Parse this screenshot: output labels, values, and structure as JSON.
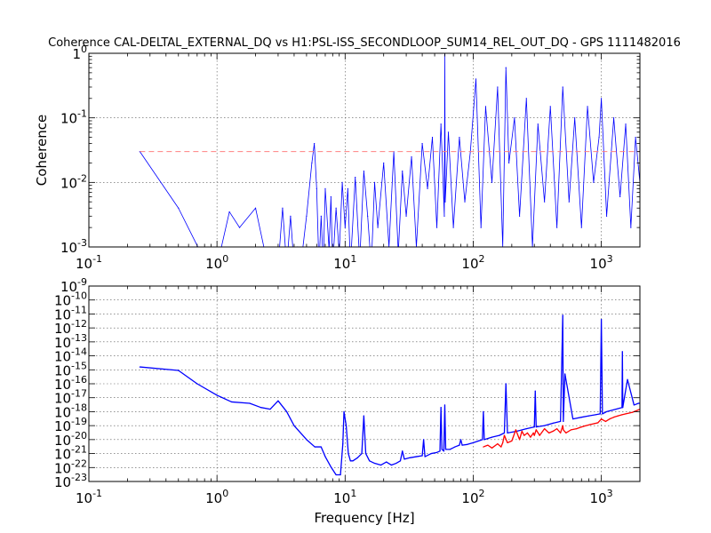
{
  "chart_data": [
    {
      "type": "line",
      "title": "Coherence CAL-DELTAL_EXTERNAL_DQ vs H1:PSL-ISS_SECONDLOOP_SUM14_REL_OUT_DQ - GPS 1111482016",
      "xlabel": "",
      "ylabel": "Coherence",
      "xscale": "log",
      "yscale": "log",
      "xlim": [
        0.1,
        2000
      ],
      "ylim": [
        0.001,
        1
      ],
      "grid": true,
      "x_ticks": [
        {
          "base": "10",
          "exp": "-1"
        },
        {
          "base": "10",
          "exp": "0"
        },
        {
          "base": "10",
          "exp": "1"
        },
        {
          "base": "10",
          "exp": "2"
        },
        {
          "base": "10",
          "exp": "3"
        }
      ],
      "y_ticks": [
        {
          "base": "10",
          "exp": "-3"
        },
        {
          "base": "10",
          "exp": "-2"
        },
        {
          "base": "10",
          "exp": "-1"
        },
        {
          "base": "1",
          "exp": "0"
        }
      ],
      "series": [
        {
          "color": "#0000ff",
          "x": [
            0.25,
            0.5,
            0.75,
            1.0,
            1.25,
            1.5,
            2.0,
            2.5,
            3.0,
            3.25,
            3.5,
            3.75,
            4.0,
            4.25,
            4.5,
            5.0,
            5.5,
            5.75,
            6.0,
            6.25,
            6.5,
            6.75,
            7.0,
            7.5,
            7.75,
            8.0,
            8.5,
            9.0,
            9.5,
            10.0,
            10.5,
            11.0,
            12.0,
            13.0,
            14.0,
            15.0,
            16.0,
            17.0,
            18.0,
            20.0,
            22.0,
            24.0,
            26.0,
            28.0,
            30.0,
            33.0,
            36.0,
            40.0,
            44.0,
            48.0,
            52.0,
            56.0,
            59.5,
            60.0,
            60.5,
            64.0,
            70.0,
            78.0,
            86.0,
            95.0,
            105.0,
            115.0,
            125.0,
            140.0,
            155.0,
            170.0,
            180.0,
            190.0,
            210.0,
            230.0,
            260.0,
            290.0,
            320.0,
            360.0,
            400.0,
            450.0,
            500.0,
            560.0,
            620.0,
            700.0,
            780.0,
            870.0,
            960.0,
            1000.0,
            1100.0,
            1250.0,
            1400.0,
            1550.0,
            1700.0,
            1850.0,
            2000.0
          ],
          "y": [
            0.03,
            0.004,
            0.0008,
            0.0005,
            0.0035,
            0.002,
            0.004,
            0.0005,
            0.0005,
            0.004,
            0.0005,
            0.003,
            0.0005,
            0.001,
            0.0005,
            0.003,
            0.02,
            0.04,
            0.008,
            0.0005,
            0.003,
            0.0005,
            0.008,
            0.0009,
            0.006,
            0.0005,
            0.004,
            0.0008,
            0.01,
            0.002,
            0.008,
            0.0005,
            0.012,
            0.0006,
            0.015,
            0.003,
            0.0005,
            0.01,
            0.002,
            0.02,
            0.001,
            0.03,
            0.0008,
            0.015,
            0.003,
            0.025,
            0.001,
            0.04,
            0.008,
            0.05,
            0.002,
            0.08,
            0.003,
            1.0,
            0.005,
            0.06,
            0.002,
            0.05,
            0.005,
            0.03,
            0.4,
            0.002,
            0.15,
            0.01,
            0.3,
            0.001,
            0.6,
            0.02,
            0.1,
            0.003,
            0.2,
            0.001,
            0.08,
            0.005,
            0.15,
            0.002,
            0.3,
            0.005,
            0.1,
            0.002,
            0.15,
            0.01,
            0.05,
            0.2,
            0.003,
            0.1,
            0.006,
            0.08,
            0.002,
            0.05,
            0.01
          ]
        },
        {
          "color": "#ff8080",
          "linestyle": "dashed",
          "x": [
            0.25,
            2000
          ],
          "y": [
            0.03,
            0.03
          ]
        }
      ]
    },
    {
      "type": "line",
      "title": "",
      "xlabel": "Frequency [Hz]",
      "ylabel": "",
      "xscale": "log",
      "yscale": "log",
      "xlim": [
        0.1,
        2000
      ],
      "ylim": [
        1e-23,
        1e-09
      ],
      "grid": true,
      "x_ticks": [
        {
          "base": "10",
          "exp": "-1"
        },
        {
          "base": "10",
          "exp": "0"
        },
        {
          "base": "10",
          "exp": "1"
        },
        {
          "base": "10",
          "exp": "2"
        },
        {
          "base": "10",
          "exp": "3"
        }
      ],
      "y_ticks": [
        {
          "base": "10",
          "exp": "-23"
        },
        {
          "base": "10",
          "exp": "-22"
        },
        {
          "base": "10",
          "exp": "-21"
        },
        {
          "base": "10",
          "exp": "-20"
        },
        {
          "base": "10",
          "exp": "-19"
        },
        {
          "base": "10",
          "exp": "-18"
        },
        {
          "base": "10",
          "exp": "-17"
        },
        {
          "base": "10",
          "exp": "-16"
        },
        {
          "base": "10",
          "exp": "-15"
        },
        {
          "base": "10",
          "exp": "-14"
        },
        {
          "base": "10",
          "exp": "-13"
        },
        {
          "base": "10",
          "exp": "-12"
        },
        {
          "base": "10",
          "exp": "-11"
        },
        {
          "base": "10",
          "exp": "-10"
        },
        {
          "base": "10",
          "exp": "-9"
        }
      ],
      "series": [
        {
          "color": "#0000ff",
          "x": [
            0.25,
            0.5,
            0.7,
            1.0,
            1.3,
            1.8,
            2.2,
            2.6,
            3.0,
            3.5,
            4.0,
            5.0,
            5.8,
            6.5,
            7.0,
            7.8,
            8.5,
            9.2,
            9.6,
            9.8,
            10.2,
            10.6,
            11.0,
            11.5,
            12.5,
            13.5,
            14.0,
            14.5,
            15.5,
            17.0,
            19.0,
            21.0,
            23.0,
            25.0,
            27.0,
            28.0,
            29.0,
            32.0,
            36.0,
            40.0,
            41.0,
            42.0,
            47.0,
            52.0,
            55.0,
            56.0,
            57.0,
            59.0,
            60.0,
            61.0,
            66.0,
            72.0,
            78.0,
            80.0,
            82.0,
            90.0,
            100.0,
            110.0,
            118.0,
            120.0,
            122.0,
            140.0,
            160.0,
            175.0,
            180.0,
            185.0,
            220.0,
            260.0,
            300.0,
            305.0,
            310.0,
            360.0,
            420.0,
            480.0,
            500.0,
            505.0,
            520.0,
            600.0,
            700.0,
            800.0,
            900.0,
            980.0,
            1000.0,
            1020.0,
            1100.0,
            1300.0,
            1450.0,
            1460.0,
            1470.0,
            1600.0,
            1800.0,
            1950.0,
            2000.0
          ],
          "y": [
            1.6e-15,
            9e-16,
            1e-16,
            1.5e-17,
            5e-18,
            4e-18,
            2e-18,
            1.5e-18,
            6e-18,
            1e-18,
            1e-19,
            1e-20,
            3e-21,
            3e-21,
            6e-22,
            1e-22,
            3e-23,
            3e-23,
            5e-21,
            1e-18,
            1e-19,
            1e-21,
            3e-22,
            3e-22,
            5e-22,
            1e-21,
            5e-19,
            1e-21,
            3e-22,
            2e-22,
            1.5e-22,
            2.5e-22,
            1.5e-22,
            2e-22,
            3e-22,
            1.5e-21,
            4e-22,
            5e-22,
            6e-22,
            7e-22,
            1e-20,
            6e-22,
            1e-21,
            1.2e-21,
            1.5e-21,
            2e-18,
            2e-21,
            1.5e-21,
            3e-18,
            2e-21,
            2e-21,
            3e-21,
            4e-21,
            1e-20,
            4e-21,
            4.5e-21,
            6e-21,
            8e-21,
            1e-20,
            1e-18,
            1e-20,
            1.5e-20,
            2e-20,
            3e-20,
            1e-16,
            3e-20,
            4e-20,
            6e-20,
            8e-20,
            3e-17,
            8e-20,
            1e-19,
            1.5e-19,
            2e-19,
            8e-12,
            2e-19,
            5e-16,
            3e-19,
            4e-19,
            5e-19,
            6e-19,
            7e-19,
            4e-12,
            7e-19,
            1e-18,
            1.5e-18,
            2e-18,
            2e-14,
            2e-18,
            2e-16,
            3e-18,
            4e-18,
            4e-18
          ]
        },
        {
          "color": "#ff0000",
          "x": [
            120.0,
            130.0,
            140.0,
            155.0,
            165.0,
            170.0,
            175.0,
            185.0,
            200.0,
            215.0,
            230.0,
            240.0,
            250.0,
            265.0,
            280.0,
            295.0,
            300.0,
            310.0,
            330.0,
            360.0,
            390.0,
            420.0,
            450.0,
            480.0,
            500.0,
            505.0,
            530.0,
            580.0,
            640.0,
            700.0,
            760.0,
            820.0,
            880.0,
            940.0,
            1000.0,
            1080.0,
            1160.0,
            1250.0,
            1350.0,
            1450.0,
            1550.0,
            1650.0,
            1750.0,
            1850.0,
            2000.0
          ],
          "y": [
            3e-21,
            4e-21,
            2.5e-21,
            5e-21,
            3e-21,
            6e-21,
            2e-20,
            6e-21,
            8e-21,
            5e-20,
            1e-20,
            4e-20,
            2e-20,
            3e-20,
            1.5e-20,
            3e-20,
            2e-20,
            5e-20,
            2e-20,
            6e-20,
            3e-20,
            4e-20,
            6e-20,
            3e-20,
            1e-19,
            5e-20,
            3e-20,
            5e-20,
            6e-20,
            8e-20,
            1e-19,
            1.2e-19,
            1.4e-19,
            1.6e-19,
            3e-19,
            2e-19,
            3e-19,
            4e-19,
            5e-19,
            6e-19,
            7e-19,
            8e-19,
            9e-19,
            1.1e-18,
            1.5e-18
          ]
        }
      ]
    }
  ]
}
